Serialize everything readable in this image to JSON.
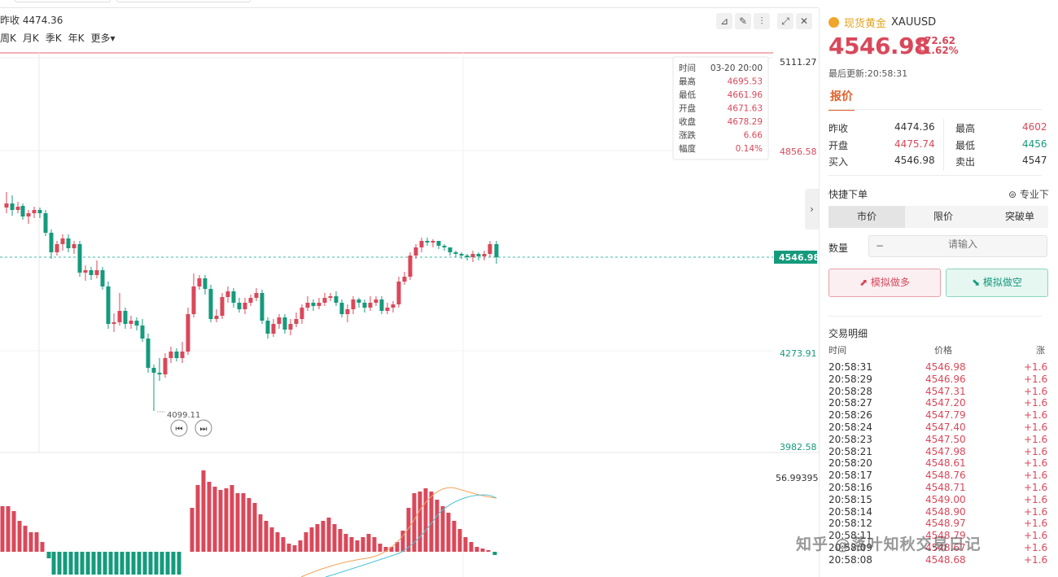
{
  "header": {
    "prev_close_text": "昨收 4474.36",
    "periods": [
      "周K",
      "月K",
      "季K",
      "年K",
      "更多▾"
    ]
  },
  "toolbar": {
    "icons": [
      "line-tool-icon",
      "draw-icon",
      "indicator-icon",
      "expand-icon",
      "close-icon"
    ]
  },
  "price_axis": {
    "labels": [
      "5111.27",
      "4856.58",
      "4546.98",
      "4273.91",
      "3982.58"
    ],
    "current": "4546.98",
    "macd_top": "56.99395"
  },
  "chart_annotations": {
    "low_marker": "4099.11"
  },
  "tooltip": {
    "rows": [
      {
        "label": "时间",
        "value": "03-20 20:00"
      },
      {
        "label": "最高",
        "value": "4695.53"
      },
      {
        "label": "最低",
        "value": "4661.96"
      },
      {
        "label": "开盘",
        "value": "4671.63"
      },
      {
        "label": "收盘",
        "value": "4678.29"
      },
      {
        "label": "涨跌",
        "value": "6.66"
      },
      {
        "label": "幅度",
        "value": "0.14%"
      }
    ]
  },
  "colors": {
    "up": "#d9485a",
    "down": "#159a7c",
    "gold": "#e0a420",
    "accent": "#e0612b"
  },
  "panel": {
    "name": "现货黄金",
    "symbol": "XAUUSD",
    "price": "4546.98",
    "change": "+72.62",
    "change_pct": "+1.62%",
    "updated": "最后更新:20:58:31",
    "tab": "报价",
    "quote": {
      "prev_close_label": "昨收",
      "prev_close": "4474.36",
      "high_label": "最高",
      "high": "4602",
      "open_label": "开盘",
      "open": "4475.74",
      "low_label": "最低",
      "low": "4456",
      "bid_label": "买入",
      "bid": "4546.98",
      "ask_label": "卖出",
      "ask": "4547"
    },
    "quick_order": "快捷下单",
    "pro_label": "⊜ 专业下",
    "order_types": [
      "市价",
      "限价",
      "突破单"
    ],
    "qty_label": "数量",
    "qty_minus": "−",
    "qty_placeholder": "请输入",
    "btn_long": "⬈ 模拟做多",
    "btn_short": "⬊ 模拟做空",
    "trades_title": "交易明细",
    "trades_head": {
      "time": "时间",
      "price": "价格",
      "third": "涨"
    },
    "trades": [
      {
        "time": "20:58:31",
        "price": "4546.98",
        "chg": "+1.6"
      },
      {
        "time": "20:58:29",
        "price": "4546.96",
        "chg": "+1.6"
      },
      {
        "time": "20:58:28",
        "price": "4547.31",
        "chg": "+1.6"
      },
      {
        "time": "20:58:27",
        "price": "4547.20",
        "chg": "+1.6"
      },
      {
        "time": "20:58:26",
        "price": "4547.79",
        "chg": "+1.6"
      },
      {
        "time": "20:58:24",
        "price": "4547.40",
        "chg": "+1.6"
      },
      {
        "time": "20:58:23",
        "price": "4547.50",
        "chg": "+1.6"
      },
      {
        "time": "20:58:21",
        "price": "4547.98",
        "chg": "+1.6"
      },
      {
        "time": "20:58:20",
        "price": "4548.61",
        "chg": "+1.6"
      },
      {
        "time": "20:58:17",
        "price": "4548.76",
        "chg": "+1.6"
      },
      {
        "time": "20:58:16",
        "price": "4548.71",
        "chg": "+1.6"
      },
      {
        "time": "20:58:15",
        "price": "4549.00",
        "chg": "+1.6"
      },
      {
        "time": "20:58:14",
        "price": "4548.90",
        "chg": "+1.6"
      },
      {
        "time": "20:58:12",
        "price": "4548.97",
        "chg": "+1.6"
      },
      {
        "time": "20:58:11",
        "price": "4548.79",
        "chg": "+1.6"
      },
      {
        "time": "20:58:09",
        "price": "4548.67",
        "chg": "+1.6"
      },
      {
        "time": "20:58:08",
        "price": "4548.68",
        "chg": "+1.6"
      }
    ]
  },
  "watermark": "知乎 @落叶知秋交易日记"
}
